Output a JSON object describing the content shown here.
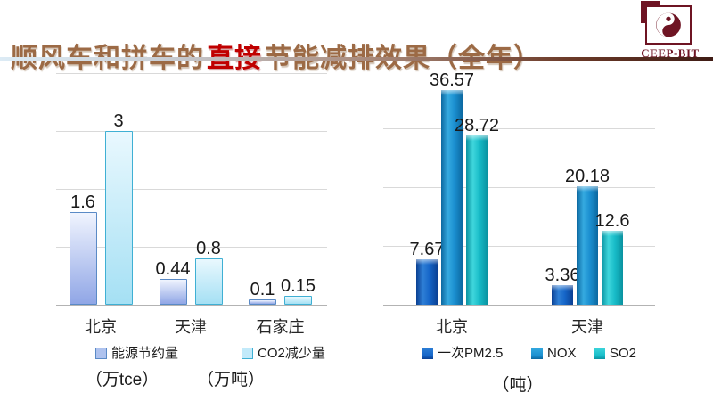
{
  "title": {
    "pre": "顺风车和拼车的",
    "highlight": "直接",
    "post": "节能减排效果（全年）"
  },
  "logo": {
    "text": "CEEP-BIT"
  },
  "colors": {
    "title_brown": "#9c6a45",
    "title_red": "#c00000",
    "logo_maroon": "#6e1423",
    "gridline": "#d9d9d9",
    "axis_line": "#b3b3b3",
    "background": "#ffffff"
  },
  "chart_data": [
    {
      "type": "bar",
      "name": "direct-energy-saving-and-co2",
      "categories": [
        "北京",
        "天津",
        "石家庄"
      ],
      "series": [
        {
          "name": "能源节约量",
          "values": [
            1.6,
            0.44,
            0.1
          ],
          "style": {
            "fill_top": "#f0f4fe",
            "fill_bottom": "#90a6e6",
            "border": "#5a8ac6",
            "swatch": "#aec2ee"
          }
        },
        {
          "name": "CO2减少量",
          "values": [
            3,
            0.8,
            0.15
          ],
          "style": {
            "fill_top": "#e9f8fe",
            "fill_bottom": "#a5e0f4",
            "border": "#3fb0d4",
            "swatch": "#c2eafa"
          }
        }
      ],
      "unit_labels": [
        "（万tce）",
        "（万吨）"
      ],
      "ylim": [
        0,
        4
      ],
      "gridline_step": 1,
      "grid": true,
      "legend_position": "bottom",
      "value_labels_shown": true
    },
    {
      "type": "bar",
      "name": "emission-reduction",
      "categories": [
        "北京",
        "天津"
      ],
      "series": [
        {
          "name": "一次PM2.5",
          "values": [
            7.67,
            3.36
          ],
          "style": {
            "dark": "#0a3f92",
            "light": "#2e7fd6",
            "main": "#1565c8"
          }
        },
        {
          "name": "NOX",
          "values": [
            36.57,
            20.18
          ],
          "style": {
            "dark": "#0c68a0",
            "light": "#35aae0",
            "main": "#1b8fd0"
          }
        },
        {
          "name": "SO2",
          "values": [
            28.72,
            12.6
          ],
          "style": {
            "dark": "#0a92a0",
            "light": "#3fd6dc",
            "main": "#18bcc8"
          }
        }
      ],
      "unit_labels": [
        "（吨）"
      ],
      "ylim": [
        0,
        40
      ],
      "gridline_step": 10,
      "grid": true,
      "legend_position": "bottom",
      "value_labels_shown": true
    }
  ]
}
